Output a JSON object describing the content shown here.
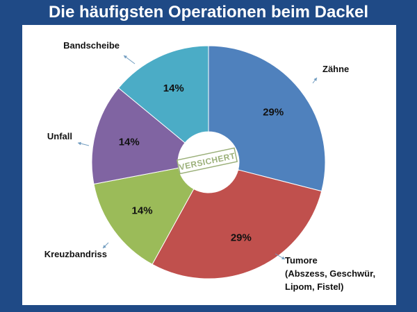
{
  "title": "Die häufigsten Operationen beim Dackel",
  "center_stamp": "VERSICHERT",
  "chart_data": {
    "type": "pie",
    "donut": true,
    "title": "Die häufigsten Operationen beim Dackel",
    "slices": [
      {
        "label": "Zähne",
        "label_lines": [
          "Zähne"
        ],
        "value": 29,
        "value_label": "29%",
        "color": "#4f81bd"
      },
      {
        "label": "Tumore (Abszess, Geschwür, Lipom, Fistel)",
        "label_lines": [
          "Tumore",
          "(Abszess, Geschwür,",
          "Lipom, Fistel)"
        ],
        "value": 29,
        "value_label": "29%",
        "color": "#c0504d"
      },
      {
        "label": "Kreuzbandriss",
        "label_lines": [
          "Kreuzbandriss"
        ],
        "value": 14,
        "value_label": "14%",
        "color": "#9bbb59"
      },
      {
        "label": "Unfall",
        "label_lines": [
          "Unfall"
        ],
        "value": 14,
        "value_label": "14%",
        "color": "#8064a2"
      },
      {
        "label": "Bandscheibe",
        "label_lines": [
          "Bandscheibe"
        ],
        "value": 14,
        "value_label": "14%",
        "color": "#4bacc6"
      }
    ],
    "start_angle": "top",
    "direction": "clockwise",
    "legend": "none"
  }
}
